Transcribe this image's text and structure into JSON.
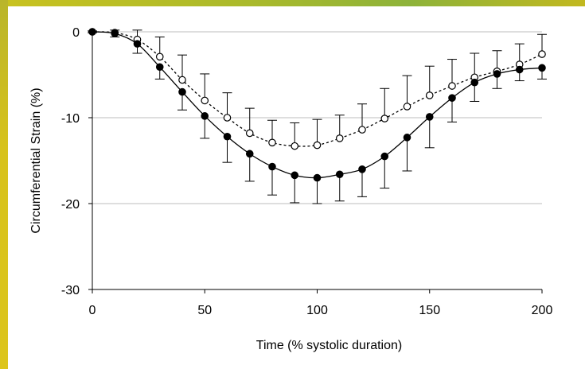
{
  "chart_data": {
    "type": "line",
    "title": "",
    "xlabel": "Time (% systolic duration)",
    "ylabel": "Circumferential Strain (%)",
    "xlim": [
      0,
      200
    ],
    "ylim": [
      -30,
      0
    ],
    "x_ticks": [
      0,
      50,
      100,
      150,
      200
    ],
    "y_ticks": [
      0,
      -10,
      -20,
      -30
    ],
    "x_tick_labels": [
      "0",
      "50",
      "100",
      "150",
      "200"
    ],
    "y_tick_labels": [
      "0",
      "-10",
      "-20",
      "-30"
    ],
    "grid": "horizontal",
    "legend": "none",
    "x": [
      0,
      10,
      20,
      30,
      40,
      50,
      60,
      70,
      80,
      90,
      100,
      110,
      120,
      130,
      140,
      150,
      160,
      170,
      180,
      190,
      200
    ],
    "series": [
      {
        "marker": "open-circle",
        "line_style": "dotted",
        "color": "#000000",
        "values": [
          0,
          -0.1,
          -0.9,
          -2.9,
          -5.6,
          -8.0,
          -10.0,
          -11.8,
          -12.9,
          -13.3,
          -13.2,
          -12.4,
          -11.4,
          -10.1,
          -8.7,
          -7.4,
          -6.3,
          -5.3,
          -4.6,
          -3.8,
          -2.6
        ],
        "error_upper": [
          0.1,
          0.3,
          1.1,
          2.3,
          2.9,
          3.1,
          2.9,
          2.9,
          2.6,
          2.7,
          3.0,
          2.7,
          3.0,
          3.5,
          3.6,
          3.4,
          3.1,
          2.8,
          2.4,
          2.4,
          2.3
        ]
      },
      {
        "marker": "filled-circle",
        "line_style": "solid",
        "color": "#000000",
        "values": [
          0,
          -0.2,
          -1.4,
          -4.1,
          -7.0,
          -9.8,
          -12.2,
          -14.2,
          -15.7,
          -16.7,
          -17.0,
          -16.6,
          -16.0,
          -14.5,
          -12.3,
          -9.9,
          -7.7,
          -5.9,
          -4.9,
          -4.4,
          -4.2
        ],
        "error_lower": [
          0.1,
          0.4,
          1.1,
          1.4,
          2.1,
          2.6,
          3.0,
          3.2,
          3.3,
          3.2,
          3.0,
          3.1,
          3.2,
          3.7,
          3.9,
          3.6,
          2.8,
          2.2,
          1.7,
          1.3,
          1.3
        ]
      }
    ]
  }
}
